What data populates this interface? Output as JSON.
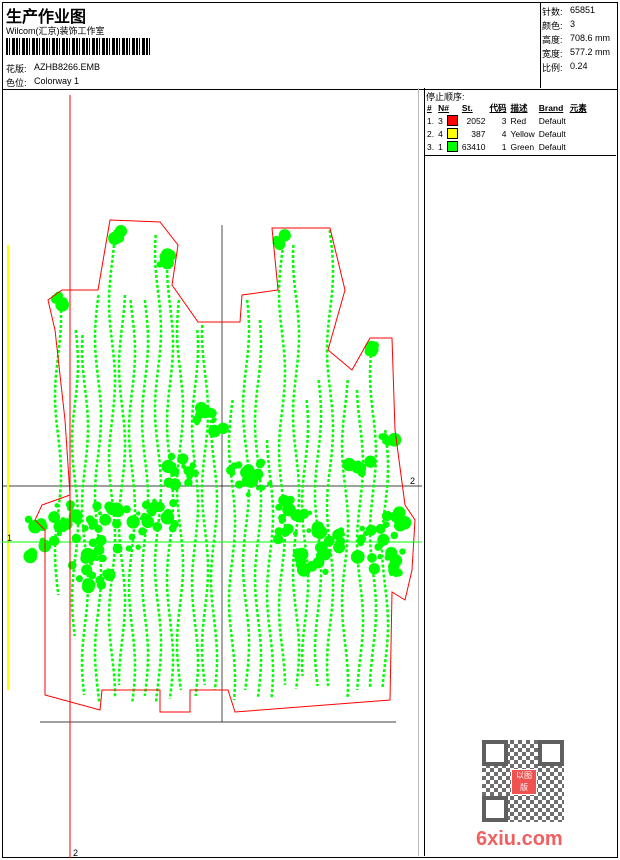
{
  "header": {
    "title": "生产作业图",
    "company": "Wilcom(汇京)装饰工作室",
    "design_label": "花版:",
    "design": "AZHB8266.EMB",
    "colorway_label": "色位:",
    "colorway": "Colorway 1"
  },
  "stats": [
    {
      "label": "针数:",
      "value": "65851"
    },
    {
      "label": "颜色:",
      "value": "3"
    },
    {
      "label": "高度:",
      "value": "708.6 mm"
    },
    {
      "label": "宽度:",
      "value": "577.2 mm"
    },
    {
      "label": "比例:",
      "value": "0.24"
    }
  ],
  "stop_sequence": {
    "title": "停止顺序:",
    "columns": [
      "#",
      "N#",
      "St.",
      "代码",
      "描述",
      "Brand",
      "元素"
    ],
    "rows": [
      {
        "idx": "1.",
        "n": "3",
        "color": "#ff0000",
        "st": "2052",
        "code": "3",
        "desc": "Red",
        "brand": "Default"
      },
      {
        "idx": "2.",
        "n": "4",
        "color": "#ffff00",
        "st": "387",
        "code": "4",
        "desc": "Yellow",
        "brand": "Default"
      },
      {
        "idx": "3.",
        "n": "1",
        "color": "#00ff00",
        "st": "63410",
        "code": "1",
        "desc": "Green",
        "brand": "Default"
      }
    ]
  },
  "markers": {
    "top_right": "2",
    "bottom": "2",
    "left": "1"
  },
  "watermark": {
    "text": "6xiu.com",
    "seal": "以图版"
  },
  "colors": {
    "outline": "#ff0000",
    "stitch": "#00ff00",
    "guide": "#000000"
  }
}
